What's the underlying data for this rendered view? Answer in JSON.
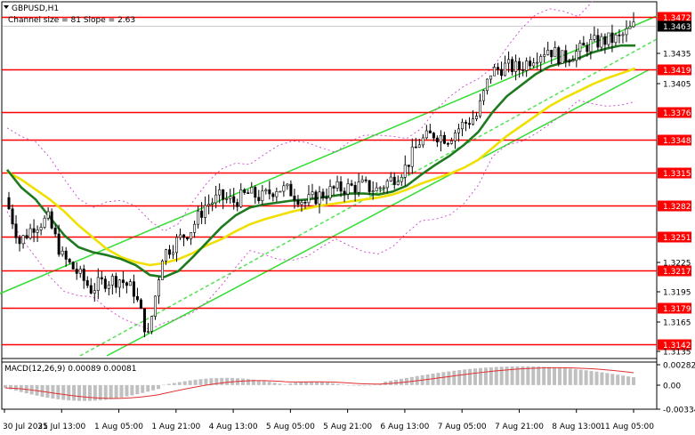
{
  "window": {
    "symbol_title": "GBPUSD,H1",
    "channel_label": "Channel size = 81 Slope = 2.63"
  },
  "macd": {
    "label": "MACD(12,26,9) 0.00089 0.00081",
    "axis": {
      "top": "0.00282",
      "zero": "0.00",
      "bottom": "-0.00334"
    },
    "range": [
      -0.00334,
      0.00282
    ]
  },
  "price_axis": {
    "range": [
      1.3128,
      1.3487
    ],
    "plain_ticks": [
      "1.3435",
      "1.3405",
      "1.3225",
      "1.3195",
      "1.3165",
      "1.3135"
    ],
    "current_price": "1.3463"
  },
  "levels": [
    {
      "label": "1.3472",
      "value": 1.3472,
      "color": "#ff0000"
    },
    {
      "label": "1.3419",
      "value": 1.3419,
      "color": "#ff0000"
    },
    {
      "label": "1.3376",
      "value": 1.3376,
      "color": "#ff0000"
    },
    {
      "label": "1.3348",
      "value": 1.3348,
      "color": "#ff0000"
    },
    {
      "label": "1.3315",
      "value": 1.3315,
      "color": "#ff0000"
    },
    {
      "label": "1.3282",
      "value": 1.3282,
      "color": "#ff0000"
    },
    {
      "label": "1.3251",
      "value": 1.3251,
      "color": "#ff0000"
    },
    {
      "label": "1.3217",
      "value": 1.3217,
      "color": "#ff0000"
    },
    {
      "label": "1.3179",
      "value": 1.3179,
      "color": "#ff0000"
    },
    {
      "label": "1.3142",
      "value": 1.3142,
      "color": "#ff0000"
    }
  ],
  "time_axis": [
    "30 Jul 2025",
    "31 Jul 13:00",
    "1 Aug 05:00",
    "1 Aug 21:00",
    "4 Aug 13:00",
    "5 Aug 05:00",
    "5 Aug 21:00",
    "6 Aug 13:00",
    "7 Aug 05:00",
    "7 Aug 21:00",
    "8 Aug 13:00",
    "11 Aug 05:00"
  ],
  "colors": {
    "level_line": "#ff0000",
    "channel": "#33dd33",
    "ma_fast": "#1f7a1f",
    "ma_slow": "#f0e000",
    "envelope": "#cc44cc",
    "candle": "#000000",
    "macd_hist": "#c0c0c0",
    "macd_signal": "#e03030"
  },
  "chart_data": {
    "type": "line",
    "title": "GBPUSD,H1",
    "x_labels": [
      "30 Jul 2025",
      "31 Jul 13:00",
      "1 Aug 05:00",
      "1 Aug 21:00",
      "4 Aug 13:00",
      "5 Aug 05:00",
      "5 Aug 21:00",
      "6 Aug 13:00",
      "7 Aug 05:00",
      "7 Aug 21:00",
      "8 Aug 13:00",
      "11 Aug 05:00"
    ],
    "ylim": [
      1.3128,
      1.3487
    ],
    "series": [
      {
        "values": [
          1.329,
          1.3245,
          1.3262,
          1.3268,
          1.323,
          1.3215,
          1.3198,
          1.3206,
          1.3208,
          1.3196,
          1.315,
          1.3232,
          1.3246,
          1.3258,
          1.3282,
          1.329,
          1.3286,
          1.3294,
          1.329,
          1.33,
          1.3296,
          1.3285,
          1.3292,
          1.3298,
          1.33,
          1.3302,
          1.3298,
          1.3308,
          1.332,
          1.3346,
          1.3354,
          1.335,
          1.3363,
          1.3372,
          1.3416,
          1.3422,
          1.342,
          1.3432,
          1.344,
          1.343,
          1.3436,
          1.3445,
          1.3448,
          1.345,
          1.3462
        ]
      },
      {
        "name": "MA fast",
        "values": [
          1.3318,
          1.33,
          1.3288,
          1.327,
          1.3252,
          1.324,
          1.3235,
          1.3232,
          1.3228,
          1.3222,
          1.3212,
          1.321,
          1.3216,
          1.323,
          1.3245,
          1.326,
          1.3272,
          1.328,
          1.3283,
          1.3285,
          1.3287,
          1.3288,
          1.329,
          1.3292,
          1.3294,
          1.3294,
          1.3293,
          1.3296,
          1.3302,
          1.3313,
          1.3323,
          1.3332,
          1.3343,
          1.3356,
          1.3376,
          1.3392,
          1.3403,
          1.3414,
          1.3422,
          1.3426,
          1.343,
          1.3436,
          1.344,
          1.3443,
          1.3443
        ]
      },
      {
        "name": "MA slow",
        "values": [
          1.3316,
          1.3308,
          1.3298,
          1.3288,
          1.3276,
          1.3262,
          1.325,
          1.3238,
          1.323,
          1.3225,
          1.3222,
          1.3224,
          1.3228,
          1.3234,
          1.3242,
          1.3248,
          1.3256,
          1.3263,
          1.3268,
          1.3272,
          1.3276,
          1.3279,
          1.3282,
          1.3284,
          1.3286,
          1.3288,
          1.329,
          1.3293,
          1.3298,
          1.3304,
          1.3309,
          1.3314,
          1.332,
          1.3328,
          1.334,
          1.3352,
          1.3362,
          1.3372,
          1.3382,
          1.339,
          1.3397,
          1.3404,
          1.341,
          1.3415,
          1.342
        ]
      }
    ],
    "levels": [
      1.3472,
      1.3419,
      1.3376,
      1.3348,
      1.3315,
      1.3282,
      1.3251,
      1.3217,
      1.3179,
      1.3142
    ]
  }
}
